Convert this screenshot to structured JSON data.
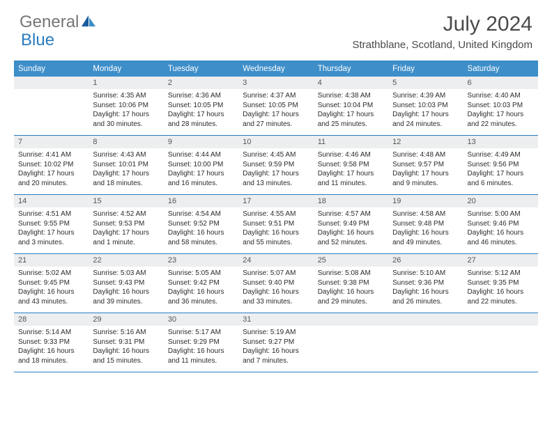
{
  "brand": {
    "part1": "General",
    "part2": "Blue"
  },
  "title": "July 2024",
  "location": "Strathblane, Scotland, United Kingdom",
  "colors": {
    "header_bg": "#3d8ec9",
    "border": "#2a7cc0",
    "daynum_bg": "#eceeef",
    "text": "#2b2b2b",
    "title_text": "#4a4a4a"
  },
  "day_names": [
    "Sunday",
    "Monday",
    "Tuesday",
    "Wednesday",
    "Thursday",
    "Friday",
    "Saturday"
  ],
  "weeks": [
    [
      {
        "n": "",
        "sr": "",
        "ss": "",
        "dl": ""
      },
      {
        "n": "1",
        "sr": "Sunrise: 4:35 AM",
        "ss": "Sunset: 10:06 PM",
        "dl": "Daylight: 17 hours and 30 minutes."
      },
      {
        "n": "2",
        "sr": "Sunrise: 4:36 AM",
        "ss": "Sunset: 10:05 PM",
        "dl": "Daylight: 17 hours and 28 minutes."
      },
      {
        "n": "3",
        "sr": "Sunrise: 4:37 AM",
        "ss": "Sunset: 10:05 PM",
        "dl": "Daylight: 17 hours and 27 minutes."
      },
      {
        "n": "4",
        "sr": "Sunrise: 4:38 AM",
        "ss": "Sunset: 10:04 PM",
        "dl": "Daylight: 17 hours and 25 minutes."
      },
      {
        "n": "5",
        "sr": "Sunrise: 4:39 AM",
        "ss": "Sunset: 10:03 PM",
        "dl": "Daylight: 17 hours and 24 minutes."
      },
      {
        "n": "6",
        "sr": "Sunrise: 4:40 AM",
        "ss": "Sunset: 10:03 PM",
        "dl": "Daylight: 17 hours and 22 minutes."
      }
    ],
    [
      {
        "n": "7",
        "sr": "Sunrise: 4:41 AM",
        "ss": "Sunset: 10:02 PM",
        "dl": "Daylight: 17 hours and 20 minutes."
      },
      {
        "n": "8",
        "sr": "Sunrise: 4:43 AM",
        "ss": "Sunset: 10:01 PM",
        "dl": "Daylight: 17 hours and 18 minutes."
      },
      {
        "n": "9",
        "sr": "Sunrise: 4:44 AM",
        "ss": "Sunset: 10:00 PM",
        "dl": "Daylight: 17 hours and 16 minutes."
      },
      {
        "n": "10",
        "sr": "Sunrise: 4:45 AM",
        "ss": "Sunset: 9:59 PM",
        "dl": "Daylight: 17 hours and 13 minutes."
      },
      {
        "n": "11",
        "sr": "Sunrise: 4:46 AM",
        "ss": "Sunset: 9:58 PM",
        "dl": "Daylight: 17 hours and 11 minutes."
      },
      {
        "n": "12",
        "sr": "Sunrise: 4:48 AM",
        "ss": "Sunset: 9:57 PM",
        "dl": "Daylight: 17 hours and 9 minutes."
      },
      {
        "n": "13",
        "sr": "Sunrise: 4:49 AM",
        "ss": "Sunset: 9:56 PM",
        "dl": "Daylight: 17 hours and 6 minutes."
      }
    ],
    [
      {
        "n": "14",
        "sr": "Sunrise: 4:51 AM",
        "ss": "Sunset: 9:55 PM",
        "dl": "Daylight: 17 hours and 3 minutes."
      },
      {
        "n": "15",
        "sr": "Sunrise: 4:52 AM",
        "ss": "Sunset: 9:53 PM",
        "dl": "Daylight: 17 hours and 1 minute."
      },
      {
        "n": "16",
        "sr": "Sunrise: 4:54 AM",
        "ss": "Sunset: 9:52 PM",
        "dl": "Daylight: 16 hours and 58 minutes."
      },
      {
        "n": "17",
        "sr": "Sunrise: 4:55 AM",
        "ss": "Sunset: 9:51 PM",
        "dl": "Daylight: 16 hours and 55 minutes."
      },
      {
        "n": "18",
        "sr": "Sunrise: 4:57 AM",
        "ss": "Sunset: 9:49 PM",
        "dl": "Daylight: 16 hours and 52 minutes."
      },
      {
        "n": "19",
        "sr": "Sunrise: 4:58 AM",
        "ss": "Sunset: 9:48 PM",
        "dl": "Daylight: 16 hours and 49 minutes."
      },
      {
        "n": "20",
        "sr": "Sunrise: 5:00 AM",
        "ss": "Sunset: 9:46 PM",
        "dl": "Daylight: 16 hours and 46 minutes."
      }
    ],
    [
      {
        "n": "21",
        "sr": "Sunrise: 5:02 AM",
        "ss": "Sunset: 9:45 PM",
        "dl": "Daylight: 16 hours and 43 minutes."
      },
      {
        "n": "22",
        "sr": "Sunrise: 5:03 AM",
        "ss": "Sunset: 9:43 PM",
        "dl": "Daylight: 16 hours and 39 minutes."
      },
      {
        "n": "23",
        "sr": "Sunrise: 5:05 AM",
        "ss": "Sunset: 9:42 PM",
        "dl": "Daylight: 16 hours and 36 minutes."
      },
      {
        "n": "24",
        "sr": "Sunrise: 5:07 AM",
        "ss": "Sunset: 9:40 PM",
        "dl": "Daylight: 16 hours and 33 minutes."
      },
      {
        "n": "25",
        "sr": "Sunrise: 5:08 AM",
        "ss": "Sunset: 9:38 PM",
        "dl": "Daylight: 16 hours and 29 minutes."
      },
      {
        "n": "26",
        "sr": "Sunrise: 5:10 AM",
        "ss": "Sunset: 9:36 PM",
        "dl": "Daylight: 16 hours and 26 minutes."
      },
      {
        "n": "27",
        "sr": "Sunrise: 5:12 AM",
        "ss": "Sunset: 9:35 PM",
        "dl": "Daylight: 16 hours and 22 minutes."
      }
    ],
    [
      {
        "n": "28",
        "sr": "Sunrise: 5:14 AM",
        "ss": "Sunset: 9:33 PM",
        "dl": "Daylight: 16 hours and 18 minutes."
      },
      {
        "n": "29",
        "sr": "Sunrise: 5:16 AM",
        "ss": "Sunset: 9:31 PM",
        "dl": "Daylight: 16 hours and 15 minutes."
      },
      {
        "n": "30",
        "sr": "Sunrise: 5:17 AM",
        "ss": "Sunset: 9:29 PM",
        "dl": "Daylight: 16 hours and 11 minutes."
      },
      {
        "n": "31",
        "sr": "Sunrise: 5:19 AM",
        "ss": "Sunset: 9:27 PM",
        "dl": "Daylight: 16 hours and 7 minutes."
      },
      {
        "n": "",
        "sr": "",
        "ss": "",
        "dl": ""
      },
      {
        "n": "",
        "sr": "",
        "ss": "",
        "dl": ""
      },
      {
        "n": "",
        "sr": "",
        "ss": "",
        "dl": ""
      }
    ]
  ]
}
